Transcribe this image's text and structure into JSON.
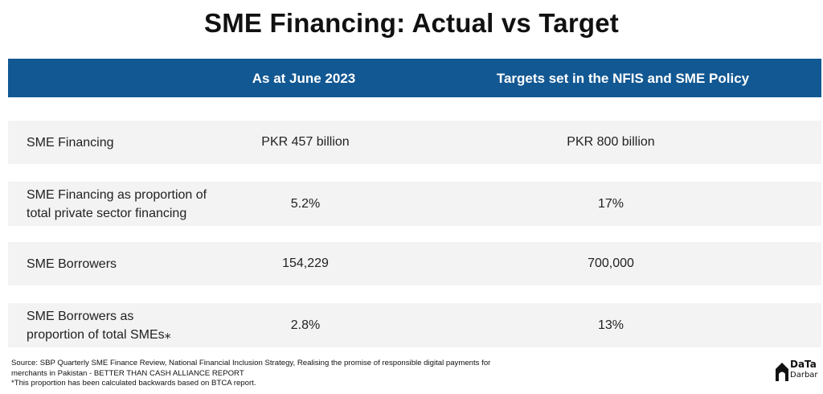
{
  "title": "SME Financing: Actual vs Target",
  "header": {
    "col1": "As at June 2023",
    "col2": "Targets set in the NFIS and SME Policy"
  },
  "rows": [
    {
      "label": "SME Financing",
      "actual": "PKR 457 billion",
      "target": "PKR 800 billion"
    },
    {
      "label_line1": "SME Financing as proportion of",
      "label_line2": "total private sector financing",
      "actual": "5.2%",
      "target": "17%"
    },
    {
      "label": "SME Borrowers",
      "actual": "154,229",
      "target": "700,000"
    },
    {
      "label_line1": "SME Borrowers as",
      "label_line2": "proportion of total SMEs⁎",
      "actual": "2.8%",
      "target": "13%"
    }
  ],
  "footer": {
    "source_line1": "Source: SBP Quarterly SME Finance Review, National Financial Inclusion Strategy, Realising the promise of responsible digital payments for",
    "source_line2": "merchants in Pakistan - BETTER THAN CASH ALLIANCE REPORT",
    "note": "*This proportion has been calculated backwards based on BTCA report."
  },
  "logo": {
    "word1": "DaTa",
    "word2": "Darbar",
    "icon": "house-icon",
    "color": "#111111"
  },
  "colors": {
    "header_bg": "#125893",
    "row_bg": "#f3f3f3"
  }
}
